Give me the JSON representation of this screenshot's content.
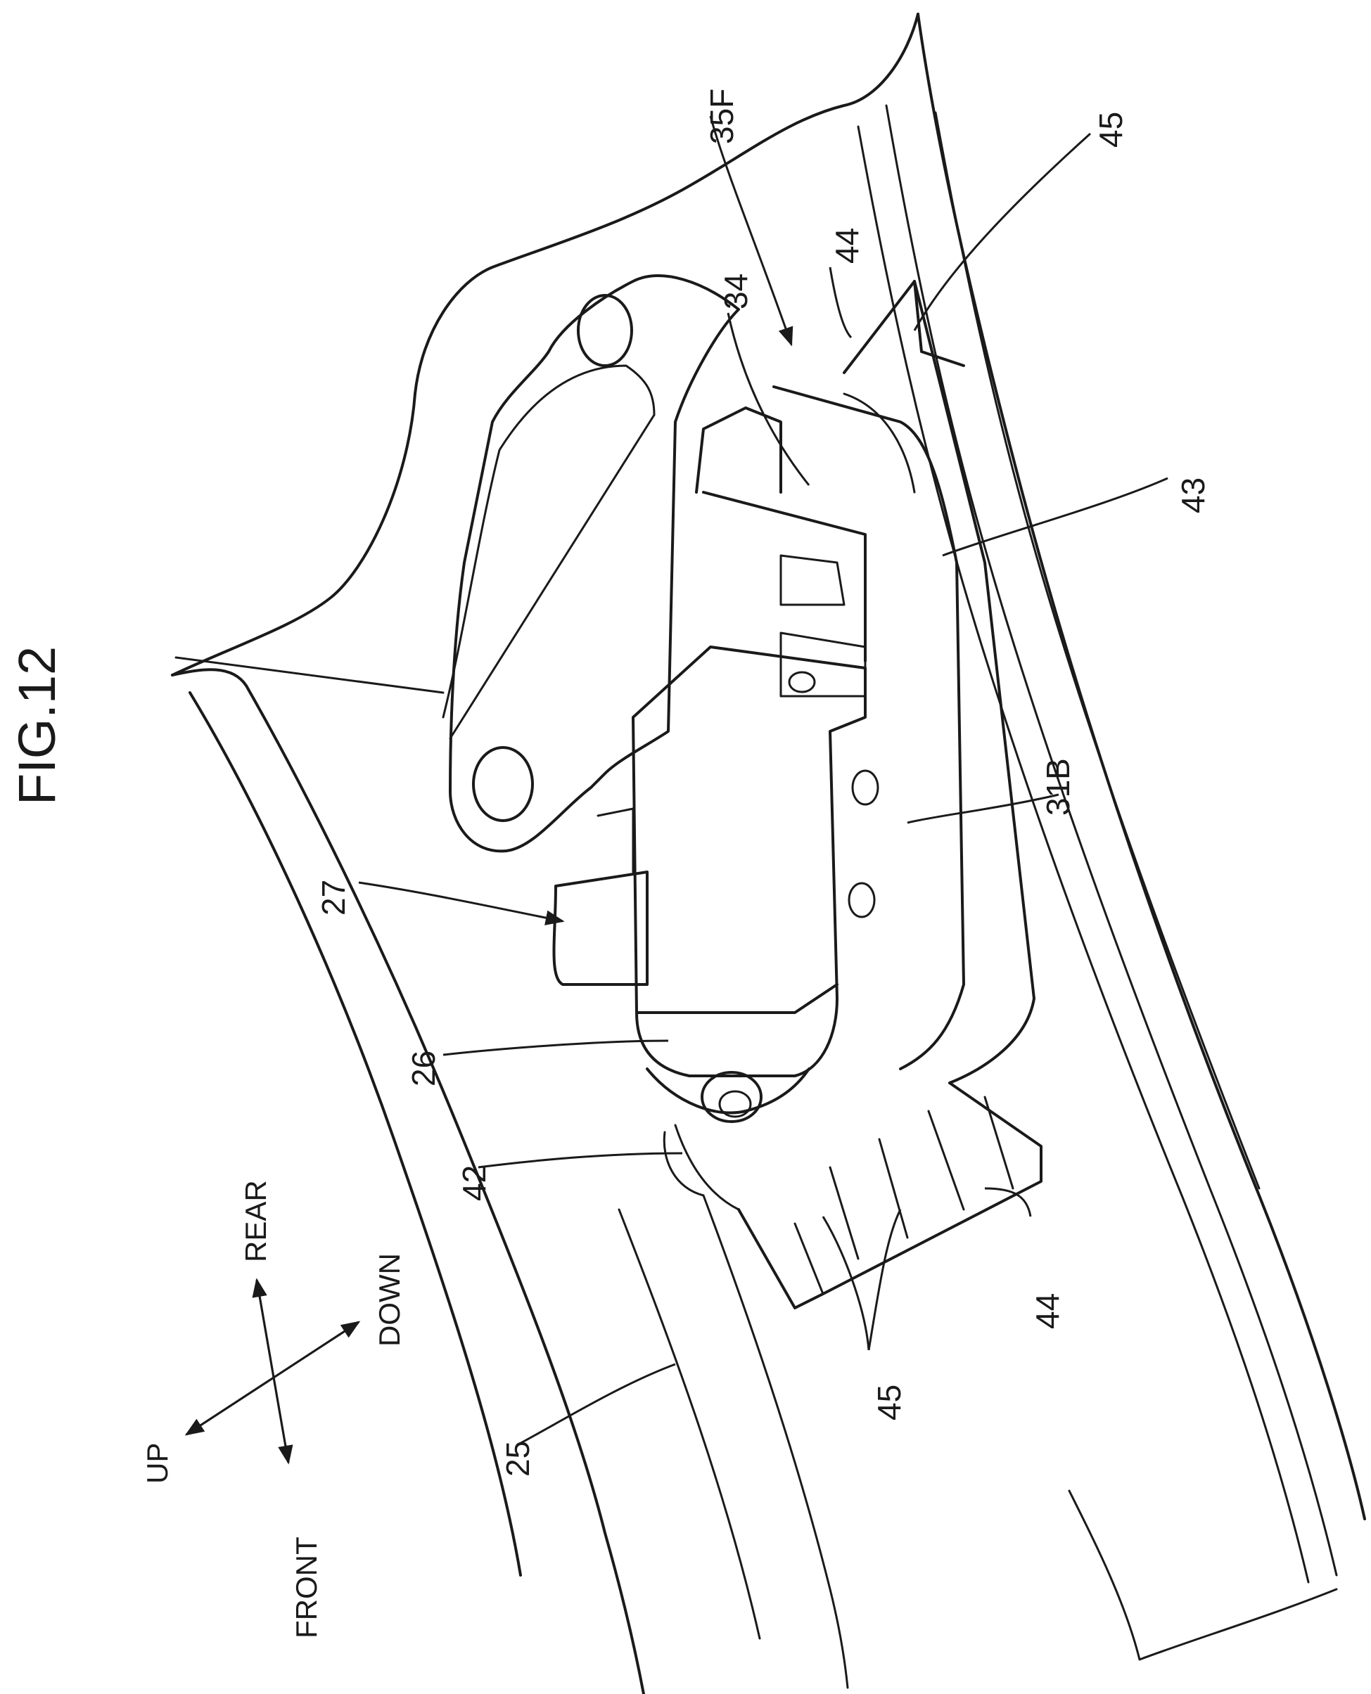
{
  "figure": {
    "title": "FIG.12"
  },
  "reference_numerals": {
    "r35F": "35F",
    "r45_top": "45",
    "r44_top": "44",
    "r34": "34",
    "r43": "43",
    "r31B": "31B",
    "r27": "27",
    "r26": "26",
    "r42": "42",
    "r44_bottom": "44",
    "r45_bottom": "45",
    "r25": "25"
  },
  "direction_indicator": {
    "rear": "REAR",
    "front": "FRONT",
    "up": "UP",
    "down": "DOWN"
  }
}
